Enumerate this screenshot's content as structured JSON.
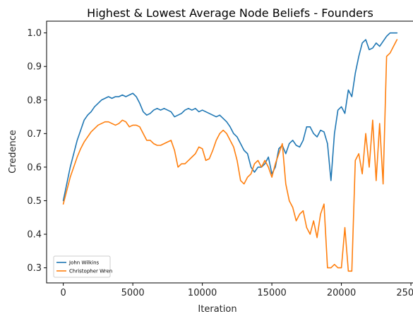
{
  "chart_data": {
    "type": "line",
    "title": "Highest & Lowest Average Node Beliefs - Founders",
    "xlabel": "Iteration",
    "ylabel": "Credence",
    "xlim": [
      -1200,
      25200
    ],
    "ylim": [
      0.255,
      1.035
    ],
    "x_ticks": [
      0,
      5000,
      10000,
      15000,
      20000,
      25000
    ],
    "y_ticks": [
      0.3,
      0.4,
      0.5,
      0.6,
      0.7,
      0.8,
      0.9,
      1.0
    ],
    "x_tick_labels": [
      "0",
      "5000",
      "10000",
      "15000",
      "20000",
      "25000"
    ],
    "y_tick_labels": [
      "0.3",
      "0.4",
      "0.5",
      "0.6",
      "0.7",
      "0.8",
      "0.9",
      "1.0"
    ],
    "grid": false,
    "legend_position": "lower-left",
    "series": [
      {
        "name": "John Wilkins",
        "color": "#1f77b4",
        "x": [
          0,
          250,
          500,
          750,
          1000,
          1250,
          1500,
          1750,
          2000,
          2250,
          2500,
          2750,
          3000,
          3250,
          3500,
          3750,
          4000,
          4250,
          4500,
          4750,
          5000,
          5250,
          5500,
          5750,
          6000,
          6250,
          6500,
          6750,
          7000,
          7250,
          7500,
          7750,
          8000,
          8250,
          8500,
          8750,
          9000,
          9250,
          9500,
          9750,
          10000,
          10250,
          10500,
          10750,
          11000,
          11250,
          11500,
          11750,
          12000,
          12250,
          12500,
          12750,
          13000,
          13250,
          13500,
          13750,
          14000,
          14250,
          14500,
          14750,
          15000,
          15250,
          15500,
          15750,
          16000,
          16250,
          16500,
          16750,
          17000,
          17250,
          17500,
          17750,
          18000,
          18250,
          18500,
          18750,
          19000,
          19250,
          19500,
          19750,
          20000,
          20250,
          20500,
          20750,
          21000,
          21250,
          21500,
          21750,
          22000,
          22250,
          22500,
          22750,
          23000,
          23250,
          23500,
          23750,
          24000
        ],
        "y": [
          0.5,
          0.55,
          0.6,
          0.64,
          0.68,
          0.71,
          0.74,
          0.755,
          0.765,
          0.78,
          0.79,
          0.8,
          0.805,
          0.81,
          0.805,
          0.81,
          0.81,
          0.815,
          0.81,
          0.815,
          0.82,
          0.81,
          0.79,
          0.765,
          0.755,
          0.76,
          0.77,
          0.775,
          0.77,
          0.775,
          0.77,
          0.765,
          0.75,
          0.755,
          0.76,
          0.77,
          0.775,
          0.77,
          0.775,
          0.765,
          0.77,
          0.765,
          0.76,
          0.755,
          0.75,
          0.755,
          0.745,
          0.735,
          0.72,
          0.7,
          0.69,
          0.67,
          0.65,
          0.64,
          0.6,
          0.585,
          0.6,
          0.6,
          0.61,
          0.63,
          0.58,
          0.6,
          0.655,
          0.665,
          0.64,
          0.67,
          0.68,
          0.665,
          0.66,
          0.68,
          0.72,
          0.72,
          0.7,
          0.69,
          0.71,
          0.705,
          0.67,
          0.56,
          0.7,
          0.77,
          0.78,
          0.76,
          0.83,
          0.81,
          0.88,
          0.93,
          0.97,
          0.98,
          0.95,
          0.955,
          0.97,
          0.96,
          0.975,
          0.99,
          1.0,
          1.0,
          1.0
        ]
      },
      {
        "name": "Christopher Wren",
        "color": "#ff7f0e",
        "x": [
          0,
          250,
          500,
          750,
          1000,
          1250,
          1500,
          1750,
          2000,
          2250,
          2500,
          2750,
          3000,
          3250,
          3500,
          3750,
          4000,
          4250,
          4500,
          4750,
          5000,
          5250,
          5500,
          5750,
          6000,
          6250,
          6500,
          6750,
          7000,
          7250,
          7500,
          7750,
          8000,
          8250,
          8500,
          8750,
          9000,
          9250,
          9500,
          9750,
          10000,
          10250,
          10500,
          10750,
          11000,
          11250,
          11500,
          11750,
          12000,
          12250,
          12500,
          12750,
          13000,
          13250,
          13500,
          13750,
          14000,
          14250,
          14500,
          14750,
          15000,
          15250,
          15500,
          15750,
          16000,
          16250,
          16500,
          16750,
          17000,
          17250,
          17500,
          17750,
          18000,
          18250,
          18500,
          18750,
          19000,
          19250,
          19500,
          19750,
          20000,
          20250,
          20500,
          20750,
          21000,
          21250,
          21500,
          21750,
          22000,
          22250,
          22500,
          22750,
          23000,
          23250,
          23500,
          23750,
          24000
        ],
        "y": [
          0.49,
          0.53,
          0.57,
          0.6,
          0.63,
          0.655,
          0.675,
          0.69,
          0.705,
          0.715,
          0.725,
          0.73,
          0.735,
          0.735,
          0.73,
          0.725,
          0.73,
          0.74,
          0.735,
          0.72,
          0.725,
          0.725,
          0.72,
          0.7,
          0.68,
          0.68,
          0.67,
          0.665,
          0.665,
          0.67,
          0.675,
          0.68,
          0.65,
          0.6,
          0.61,
          0.61,
          0.62,
          0.63,
          0.64,
          0.66,
          0.655,
          0.62,
          0.625,
          0.65,
          0.68,
          0.7,
          0.71,
          0.7,
          0.68,
          0.66,
          0.62,
          0.56,
          0.55,
          0.57,
          0.58,
          0.61,
          0.62,
          0.6,
          0.62,
          0.6,
          0.57,
          0.61,
          0.64,
          0.67,
          0.55,
          0.5,
          0.48,
          0.44,
          0.46,
          0.47,
          0.42,
          0.4,
          0.44,
          0.39,
          0.46,
          0.49,
          0.3,
          0.3,
          0.31,
          0.3,
          0.3,
          0.42,
          0.29,
          0.29,
          0.62,
          0.64,
          0.58,
          0.7,
          0.6,
          0.74,
          0.56,
          0.73,
          0.55,
          0.93,
          0.94,
          0.96,
          0.98
        ]
      }
    ]
  }
}
